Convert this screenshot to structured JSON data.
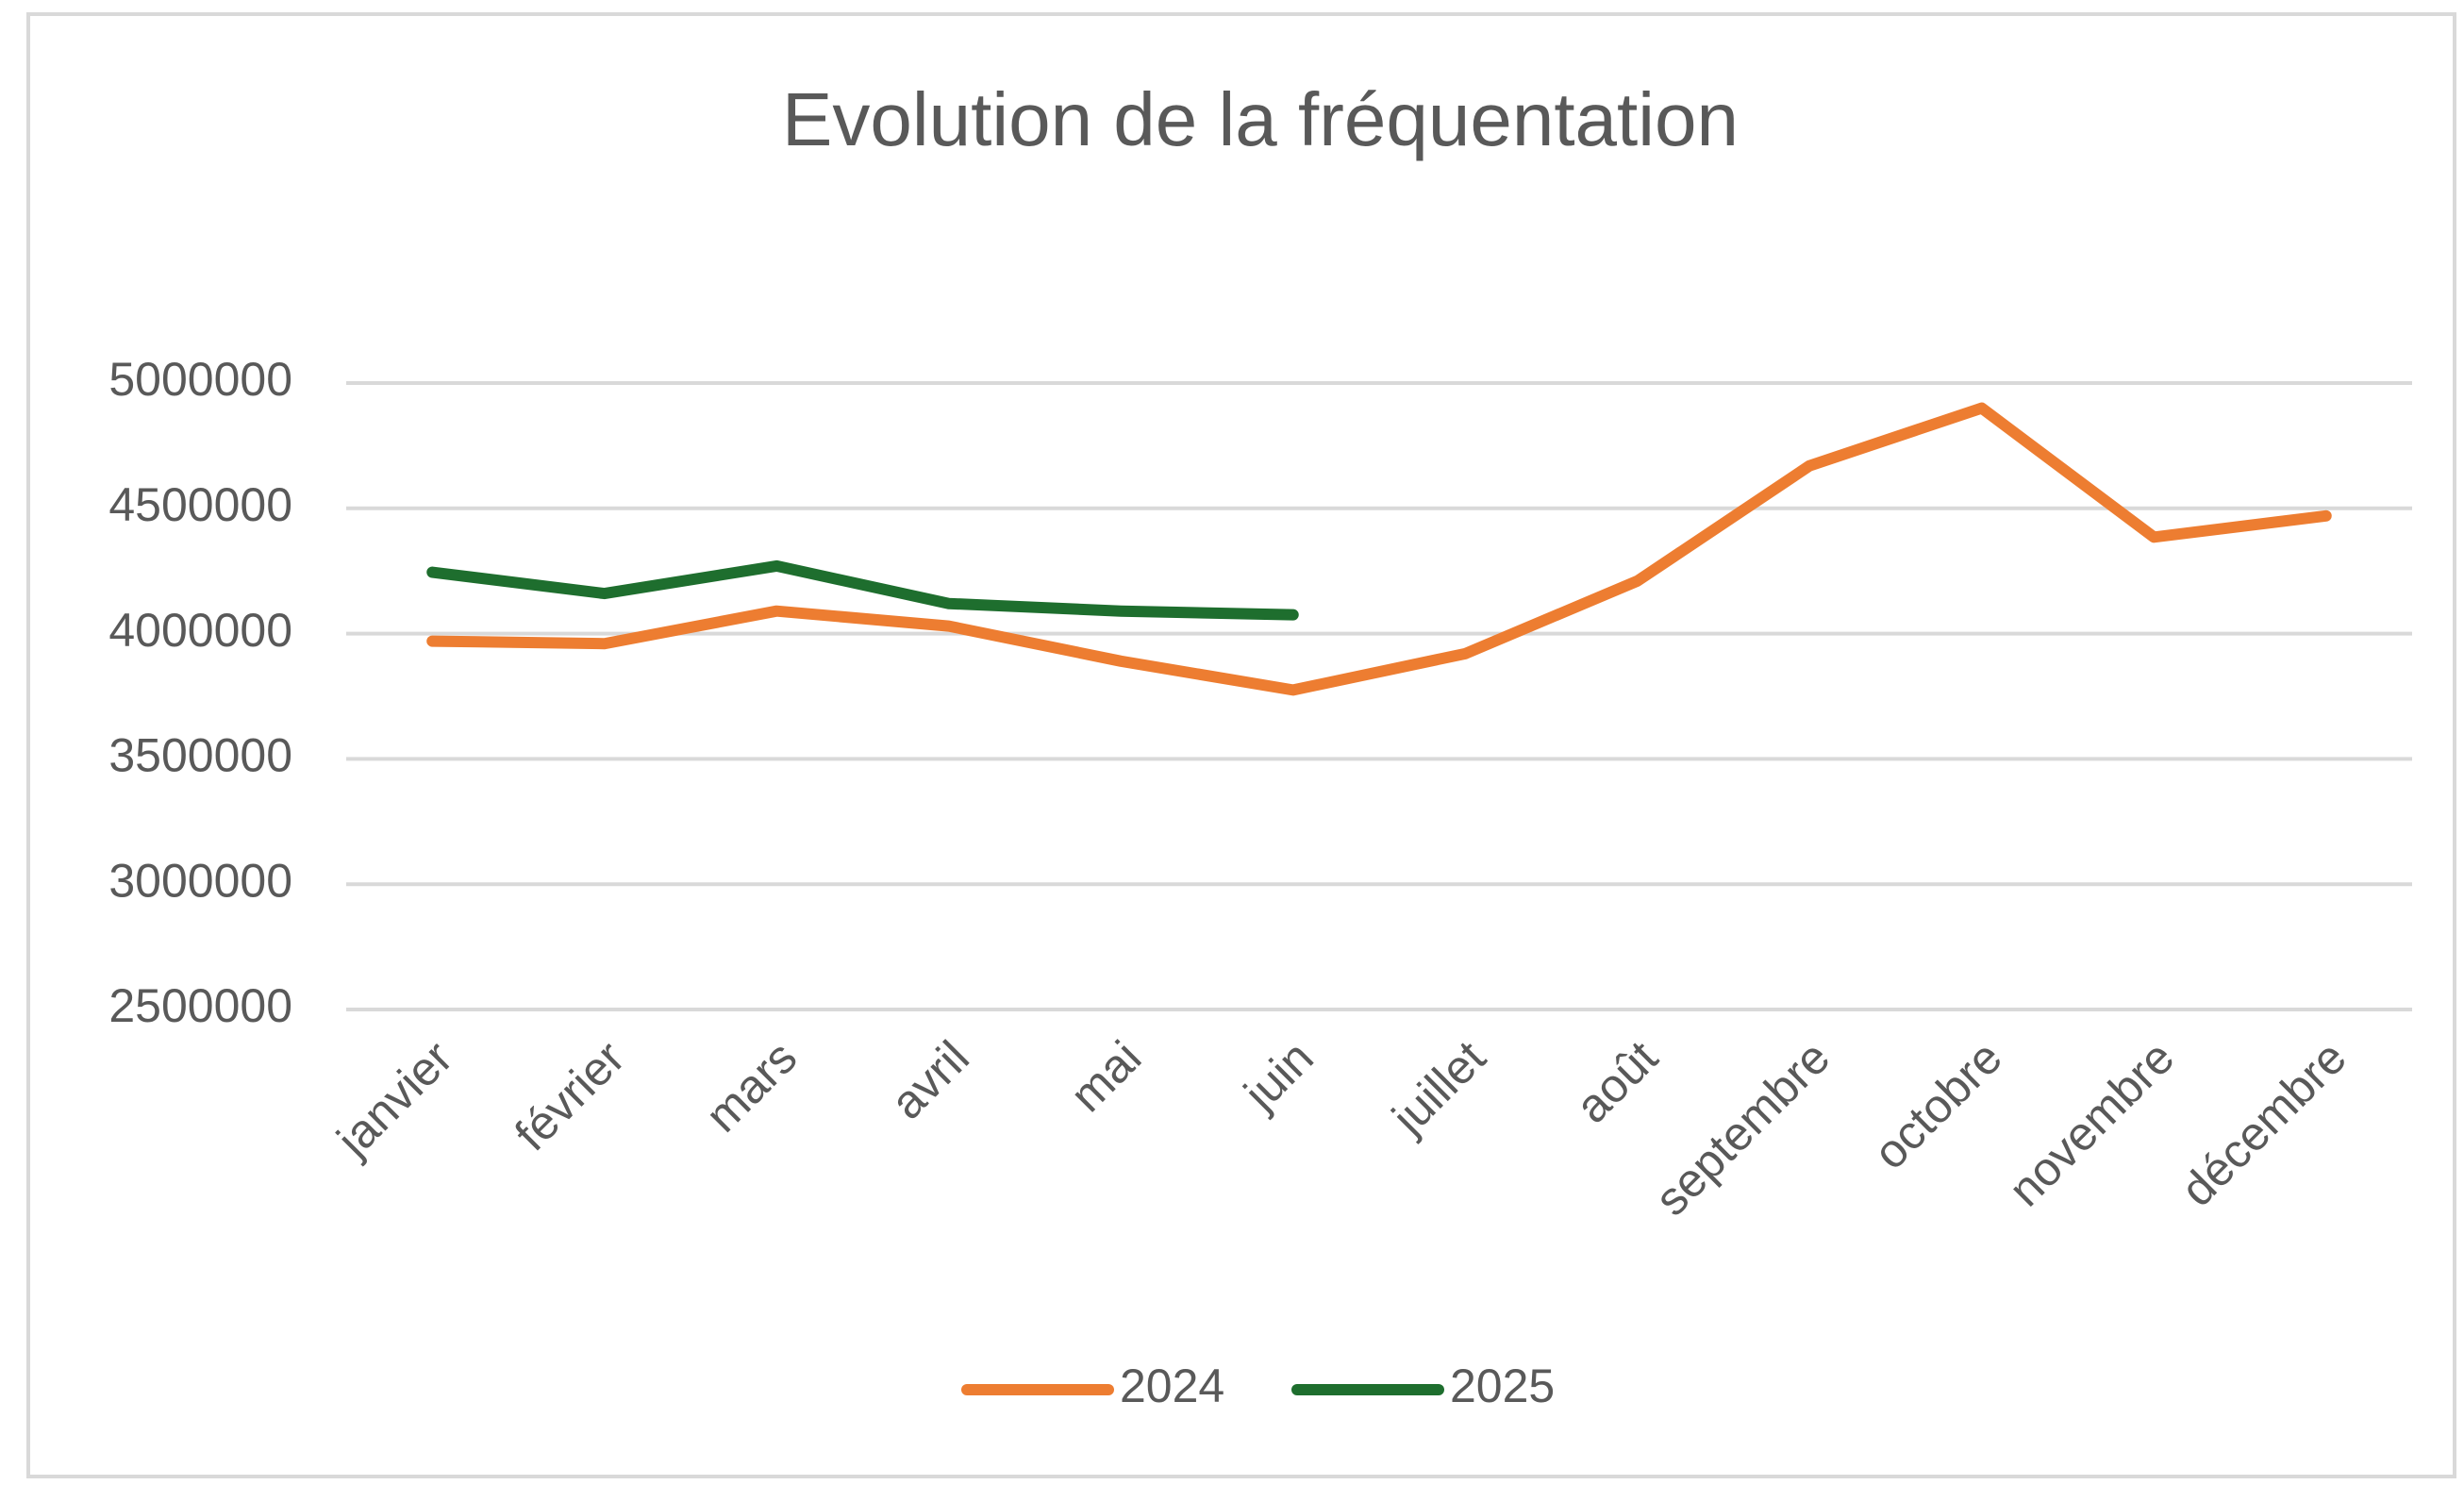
{
  "chart_data": {
    "type": "line",
    "title": "Evolution de la fréquentation",
    "categories": [
      "janvier",
      "février",
      "mars",
      "avril",
      "mai",
      "juin",
      "juillet",
      "août",
      "septembre",
      "octobre",
      "novembre",
      "décembre"
    ],
    "series": [
      {
        "name": "2024",
        "color": "#ed7d31",
        "values": [
          3970000,
          3960000,
          4090000,
          4030000,
          3890000,
          3775000,
          3920000,
          4210000,
          4670000,
          4900000,
          4385000,
          4470000
        ]
      },
      {
        "name": "2025",
        "color": "#1e6e2e",
        "values": [
          4245000,
          4160000,
          4270000,
          4120000,
          4090000,
          4075000,
          null,
          null,
          null,
          null,
          null,
          null
        ]
      }
    ],
    "ylim": [
      2500000,
      5000000
    ],
    "yticks": [
      2500000,
      3000000,
      3500000,
      4000000,
      4500000,
      5000000
    ],
    "grid": true,
    "legend": "bottom"
  }
}
